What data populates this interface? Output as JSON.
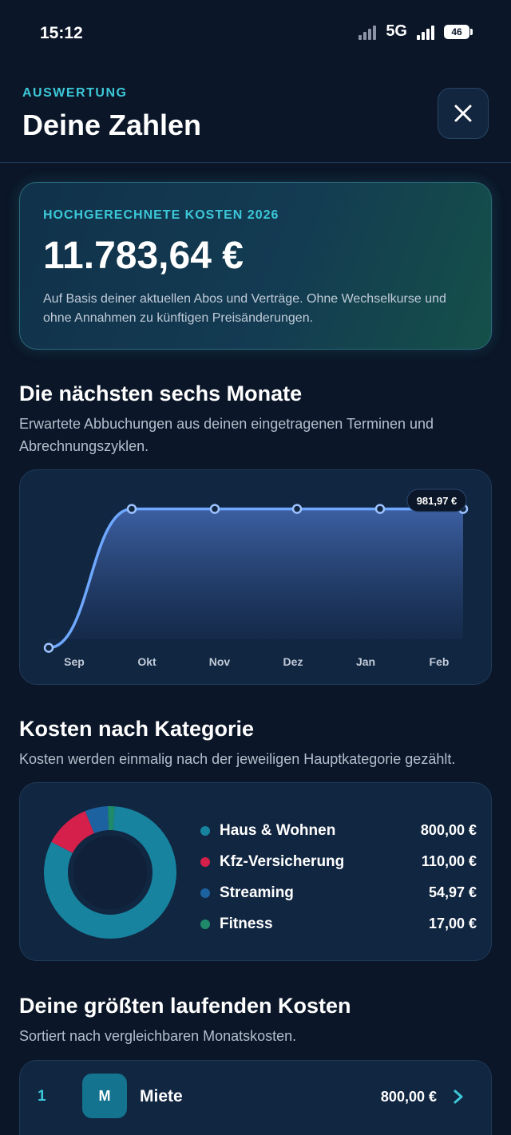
{
  "status_bar": {
    "time": "15:12",
    "network": "5G",
    "battery": "46"
  },
  "header": {
    "eyebrow": "AUSWERTUNG",
    "title": "Deine Zahlen",
    "close_icon": "close-icon"
  },
  "forecast": {
    "label": "HOCHGERECHNETE KOSTEN 2026",
    "amount": "11.783,64 €",
    "note": "Auf Basis deiner aktuellen Abos und Verträge. Ohne Wechselkurse und ohne Annahmen zu künftigen Preisänderungen."
  },
  "next_months": {
    "title": "Die nächsten sechs Monate",
    "subtitle": "Erwartete Abbuchungen aus deinen eingetragenen Terminen und Abrechnungszyklen.",
    "highlight_label": "981,97 €"
  },
  "categories": {
    "title": "Kosten nach Kategorie",
    "subtitle": "Kosten werden einmalig nach der jeweiligen Hauptkategorie gezählt.",
    "items": [
      {
        "name": "Haus & Wohnen",
        "value": "800,00 €",
        "color": "#17839f"
      },
      {
        "name": "Kfz-Versicherung",
        "value": "110,00 €",
        "color": "#d4204a"
      },
      {
        "name": "Streaming",
        "value": "54,97 €",
        "color": "#1d62a0"
      },
      {
        "name": "Fitness",
        "value": "17,00 €",
        "color": "#1f8a6a"
      }
    ]
  },
  "largest_costs": {
    "title": "Deine größten laufenden Kosten",
    "subtitle": "Sortiert nach vergleichbaren Monatskosten.",
    "items": [
      {
        "rank": "1",
        "initial": "M",
        "name": "Miete",
        "amount": "800,00 €"
      }
    ]
  },
  "chart_data": [
    {
      "type": "area",
      "categories": [
        "Sep",
        "Okt",
        "Nov",
        "Dez",
        "Jan",
        "Feb"
      ],
      "series": [
        {
          "values": [
            40,
            981.97,
            981.97,
            981.97,
            981.97,
            981.97
          ]
        }
      ],
      "ylim": [
        0,
        1050
      ],
      "grid": false,
      "annotations": [
        "981,97 €"
      ],
      "color": "#6ea8ff"
    },
    {
      "type": "pie",
      "categories": [
        "Haus & Wohnen",
        "Kfz-Versicherung",
        "Streaming",
        "Fitness"
      ],
      "values": [
        800.0,
        110.0,
        54.97,
        17.0
      ],
      "colors": [
        "#17839f",
        "#d4204a",
        "#1d62a0",
        "#1f8a6a"
      ],
      "donut": true
    }
  ]
}
